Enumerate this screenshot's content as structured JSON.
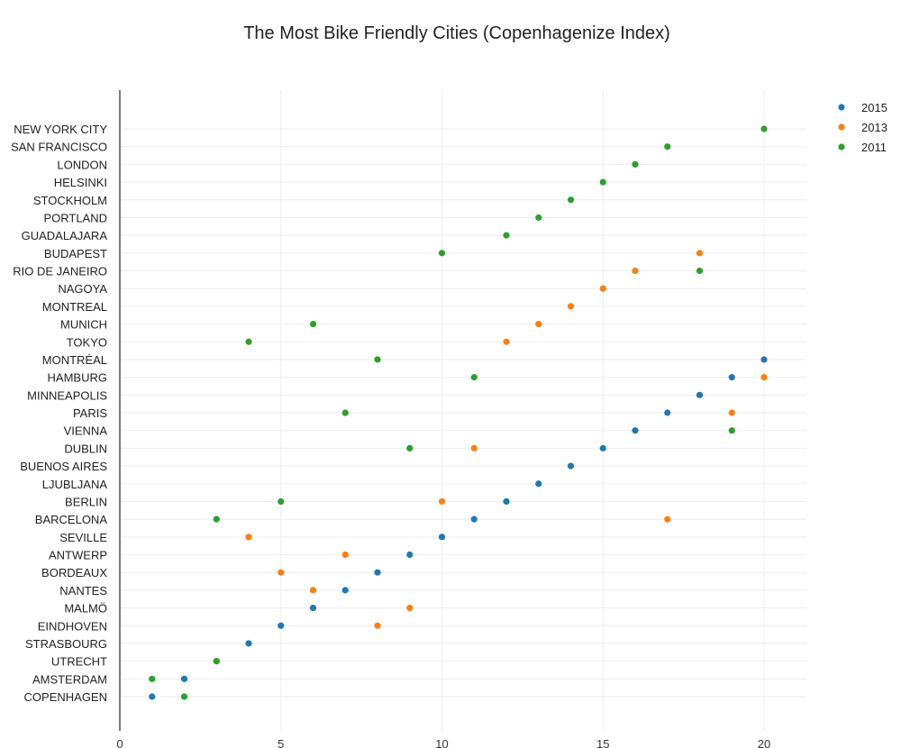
{
  "chart_data": {
    "type": "scatter",
    "title": "The Most Bike Friendly Cities (Copenhagenize Index)",
    "xlabel": "",
    "ylabel": "",
    "xlim": [
      0,
      22
    ],
    "x_ticks": [
      "0",
      "5",
      "10",
      "15",
      "20"
    ],
    "grid": true,
    "legend_position": "top-right",
    "categories": [
      "NEW YORK CITY",
      "SAN FRANCISCO",
      "LONDON",
      "HELSINKI",
      "STOCKHOLM",
      "PORTLAND",
      "GUADALAJARA",
      "BUDAPEST",
      "RIO DE JANEIRO",
      "NAGOYA",
      "MONTREAL",
      "MUNICH",
      "TOKYO",
      "MONTRÉAL",
      "HAMBURG",
      "MINNEAPOLIS",
      "PARIS",
      "VIENNA",
      "DUBLIN",
      "BUENOS AIRES",
      "LJUBLJANA",
      "BERLIN",
      "BARCELONA",
      "SEVILLE",
      "ANTWERP",
      "BORDEAUX",
      "NANTES",
      "MALMÖ",
      "EINDHOVEN",
      "STRASBOURG",
      "UTRECHT",
      "AMSTERDAM",
      "COPENHAGEN"
    ],
    "series": [
      {
        "name": "2015",
        "color": "#1f77b4",
        "values": [
          null,
          null,
          null,
          null,
          null,
          null,
          null,
          null,
          null,
          null,
          null,
          null,
          null,
          20,
          19,
          18,
          17,
          16,
          15,
          14,
          13,
          12,
          11,
          10,
          9,
          8,
          7,
          6,
          5,
          4,
          3,
          2,
          1
        ]
      },
      {
        "name": "2013",
        "color": "#ff7f0e",
        "values": [
          null,
          null,
          null,
          null,
          null,
          null,
          null,
          18,
          16,
          15,
          14,
          13,
          12,
          null,
          20,
          null,
          19,
          null,
          11,
          null,
          null,
          10,
          17,
          4,
          7,
          5,
          6,
          9,
          8,
          null,
          3,
          null,
          null
        ]
      },
      {
        "name": "2011",
        "color": "#2ca02c",
        "values": [
          20,
          17,
          16,
          15,
          14,
          13,
          12,
          10,
          18,
          null,
          null,
          6,
          4,
          8,
          11,
          null,
          7,
          19,
          9,
          null,
          null,
          5,
          3,
          null,
          null,
          null,
          null,
          null,
          null,
          null,
          3,
          1,
          2
        ]
      }
    ]
  }
}
